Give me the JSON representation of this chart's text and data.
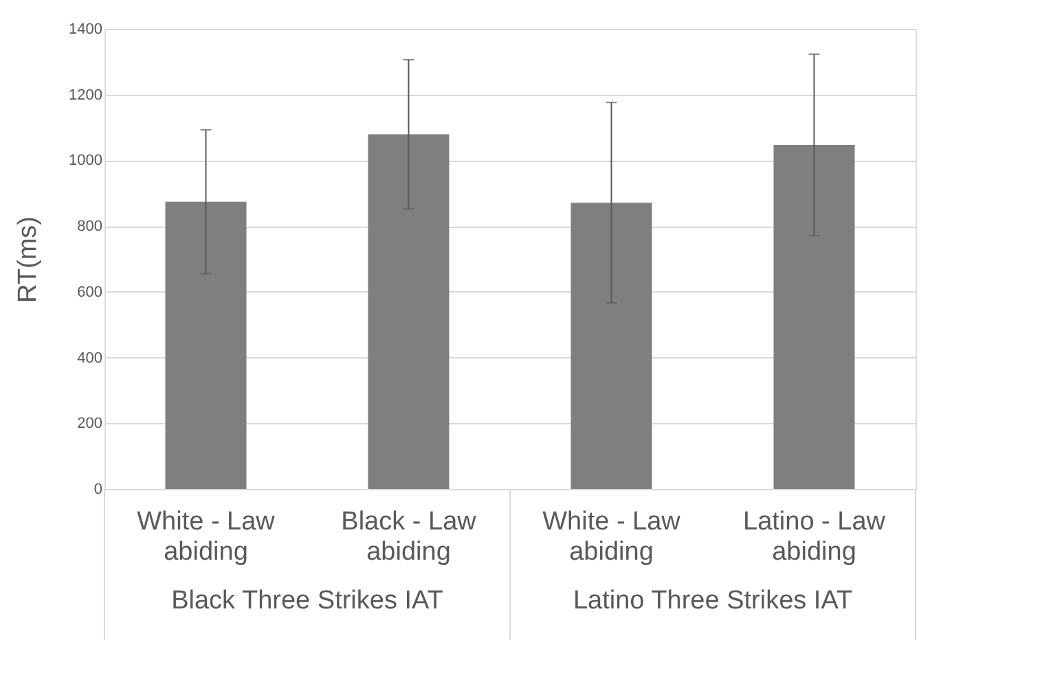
{
  "chart_data": {
    "type": "bar",
    "ylabel": "RT(ms)",
    "categories": [
      "White - Law abiding",
      "Black - Law abiding",
      "White - Law abiding",
      "Latino - Law abiding"
    ],
    "values": [
      874,
      1079,
      871,
      1047
    ],
    "errors": [
      219,
      227,
      305,
      276
    ],
    "color": "#7f7f7f",
    "ylim": [
      0,
      1400
    ],
    "yticks": [
      0,
      200,
      400,
      600,
      800,
      1000,
      1200,
      1400
    ],
    "grid": "y",
    "annotations": [
      "Black Three Strikes IAT",
      "Latino Three Strikes IAT"
    ]
  }
}
